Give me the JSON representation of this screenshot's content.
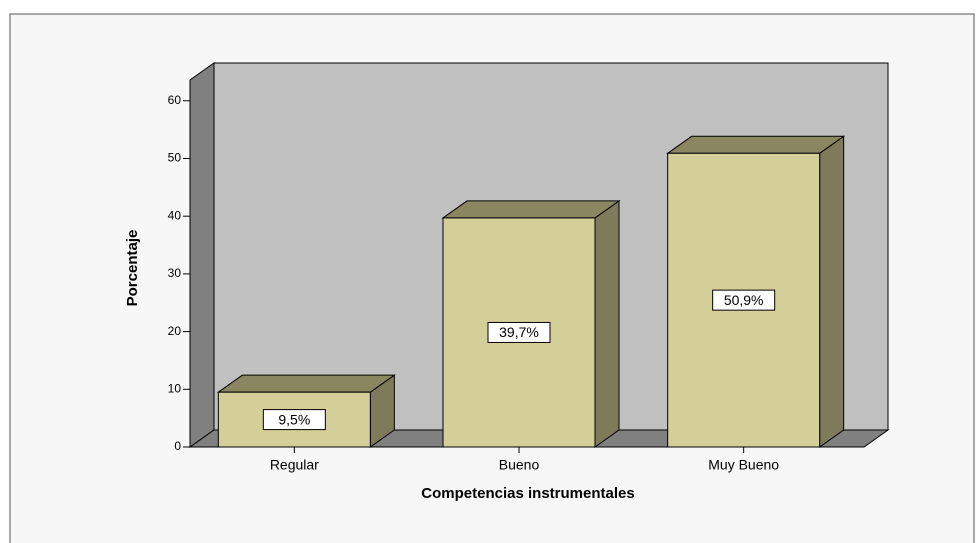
{
  "chart_data": {
    "type": "bar3d",
    "categories": [
      "Regular",
      "Bueno",
      "Muy Bueno"
    ],
    "values": [
      9.5,
      39.7,
      50.9
    ],
    "value_labels": [
      "9,5%",
      "39,7%",
      "50,9%"
    ],
    "color": "#d4cf98",
    "ylim": [
      0,
      63.6
    ],
    "yticks": [
      0,
      10,
      20,
      30,
      40,
      50,
      60
    ],
    "xlabel": "Competencias instrumentales",
    "ylabel": "Porcentaje"
  }
}
